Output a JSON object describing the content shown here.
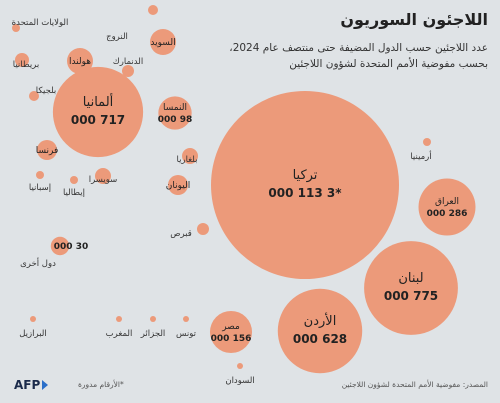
{
  "header": {
    "title": "اللاجئون السوريون",
    "subtitle_line1": "عدد اللاجئين حسب الدول المضيفة حتى منتصف عام 2024،",
    "subtitle_line2": "بحسب مفوضية الأمم المتحدة لشؤون اللاجئين"
  },
  "footer": {
    "source": "المصدر: مفوضية الأمم المتحدة لشؤون اللاجئين",
    "note": "*الأرقام مدورة",
    "logo": "AFP"
  },
  "colors": {
    "bubble": "#ec9a7a",
    "background": "#dfe3e6"
  },
  "chart_data": {
    "type": "bubble",
    "title": "اللاجئون السوريون",
    "unit": "refugees",
    "series": [
      {
        "name": "تركيا",
        "value": 3113000,
        "value_label": "*3 113 000"
      },
      {
        "name": "لبنان",
        "value": 775000,
        "value_label": "775 000"
      },
      {
        "name": "ألمانيا",
        "value": 717000,
        "value_label": "717 000"
      },
      {
        "name": "الأردن",
        "value": 628000,
        "value_label": "628 000"
      },
      {
        "name": "العراق",
        "value": 286000,
        "value_label": "286 000"
      },
      {
        "name": "مصر",
        "value": 156000,
        "value_label": "156 000"
      },
      {
        "name": "النمسا",
        "value": 98000,
        "value_label": "98 000"
      },
      {
        "name": "دول أخرى",
        "value": 30000,
        "value_label": "30 000"
      },
      {
        "name": "السويد",
        "value": null
      },
      {
        "name": "هولندا",
        "value": null
      },
      {
        "name": "الدنمارك",
        "value": null
      },
      {
        "name": "النروج",
        "value": null
      },
      {
        "name": "بريطانيا",
        "value": null
      },
      {
        "name": "الولايات المتحدة",
        "value": null
      },
      {
        "name": "بلجيكا",
        "value": null
      },
      {
        "name": "فرنسا",
        "value": null
      },
      {
        "name": "إسبانيا",
        "value": null
      },
      {
        "name": "إيطاليا",
        "value": null
      },
      {
        "name": "سويسرا",
        "value": null
      },
      {
        "name": "بلغاريا",
        "value": null
      },
      {
        "name": "اليونان",
        "value": null
      },
      {
        "name": "قبرص",
        "value": null
      },
      {
        "name": "أرمينيا",
        "value": null
      },
      {
        "name": "البرازيل",
        "value": null
      },
      {
        "name": "المغرب",
        "value": null
      },
      {
        "name": "الجزائر",
        "value": null
      },
      {
        "name": "تونس",
        "value": null
      },
      {
        "name": "السودان",
        "value": null
      }
    ]
  }
}
